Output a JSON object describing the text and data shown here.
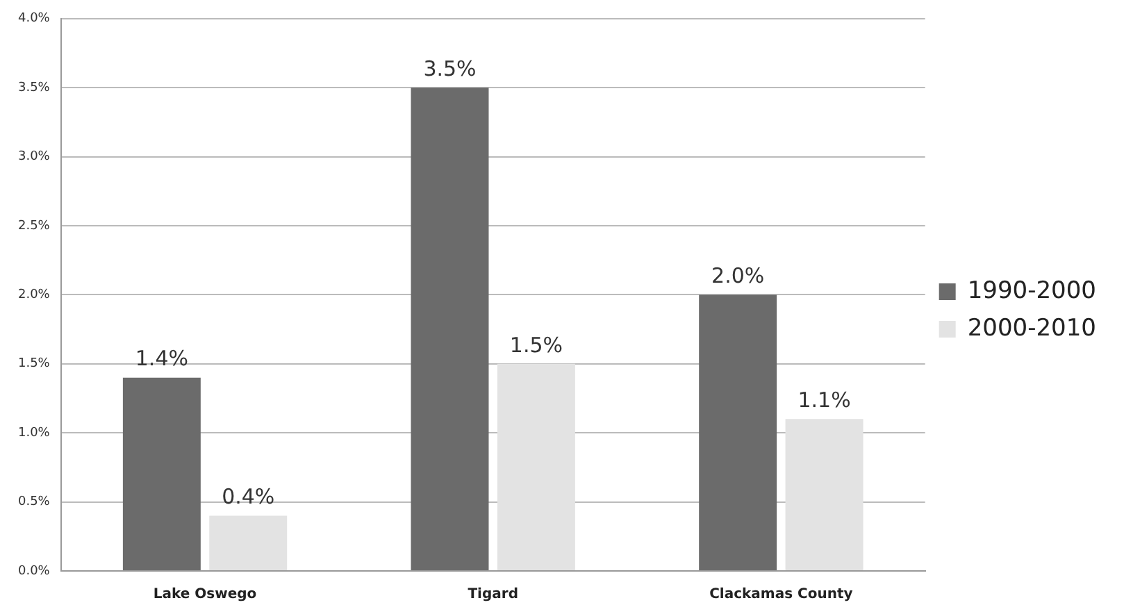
{
  "chart_data": {
    "type": "bar",
    "categories": [
      "Lake Oswego",
      "Tigard",
      "Clackamas County"
    ],
    "series": [
      {
        "name": "1990-2000",
        "color": "#6b6b6b",
        "values": [
          1.4,
          3.5,
          2.0
        ],
        "value_labels": [
          "1.4%",
          "3.5%",
          "2.0%"
        ]
      },
      {
        "name": "2000-2010",
        "color": "#e3e3e3",
        "values": [
          0.4,
          1.5,
          1.1
        ],
        "value_labels": [
          "0.4%",
          "1.5%",
          "1.1%"
        ]
      }
    ],
    "ylim": [
      0,
      4
    ],
    "yticks": [
      {
        "value": 0,
        "label": "0.0%"
      },
      {
        "value": 0.5,
        "label": "0.5%"
      },
      {
        "value": 1,
        "label": "1.0%"
      },
      {
        "value": 1.5,
        "label": "1.5%"
      },
      {
        "value": 2,
        "label": "2.0%"
      },
      {
        "value": 2.5,
        "label": "2.5%"
      },
      {
        "value": 3,
        "label": "3.0%"
      },
      {
        "value": 3.5,
        "label": "3.5%"
      },
      {
        "value": 4,
        "label": "4.0%"
      }
    ],
    "grid": "y",
    "legend": "right"
  }
}
